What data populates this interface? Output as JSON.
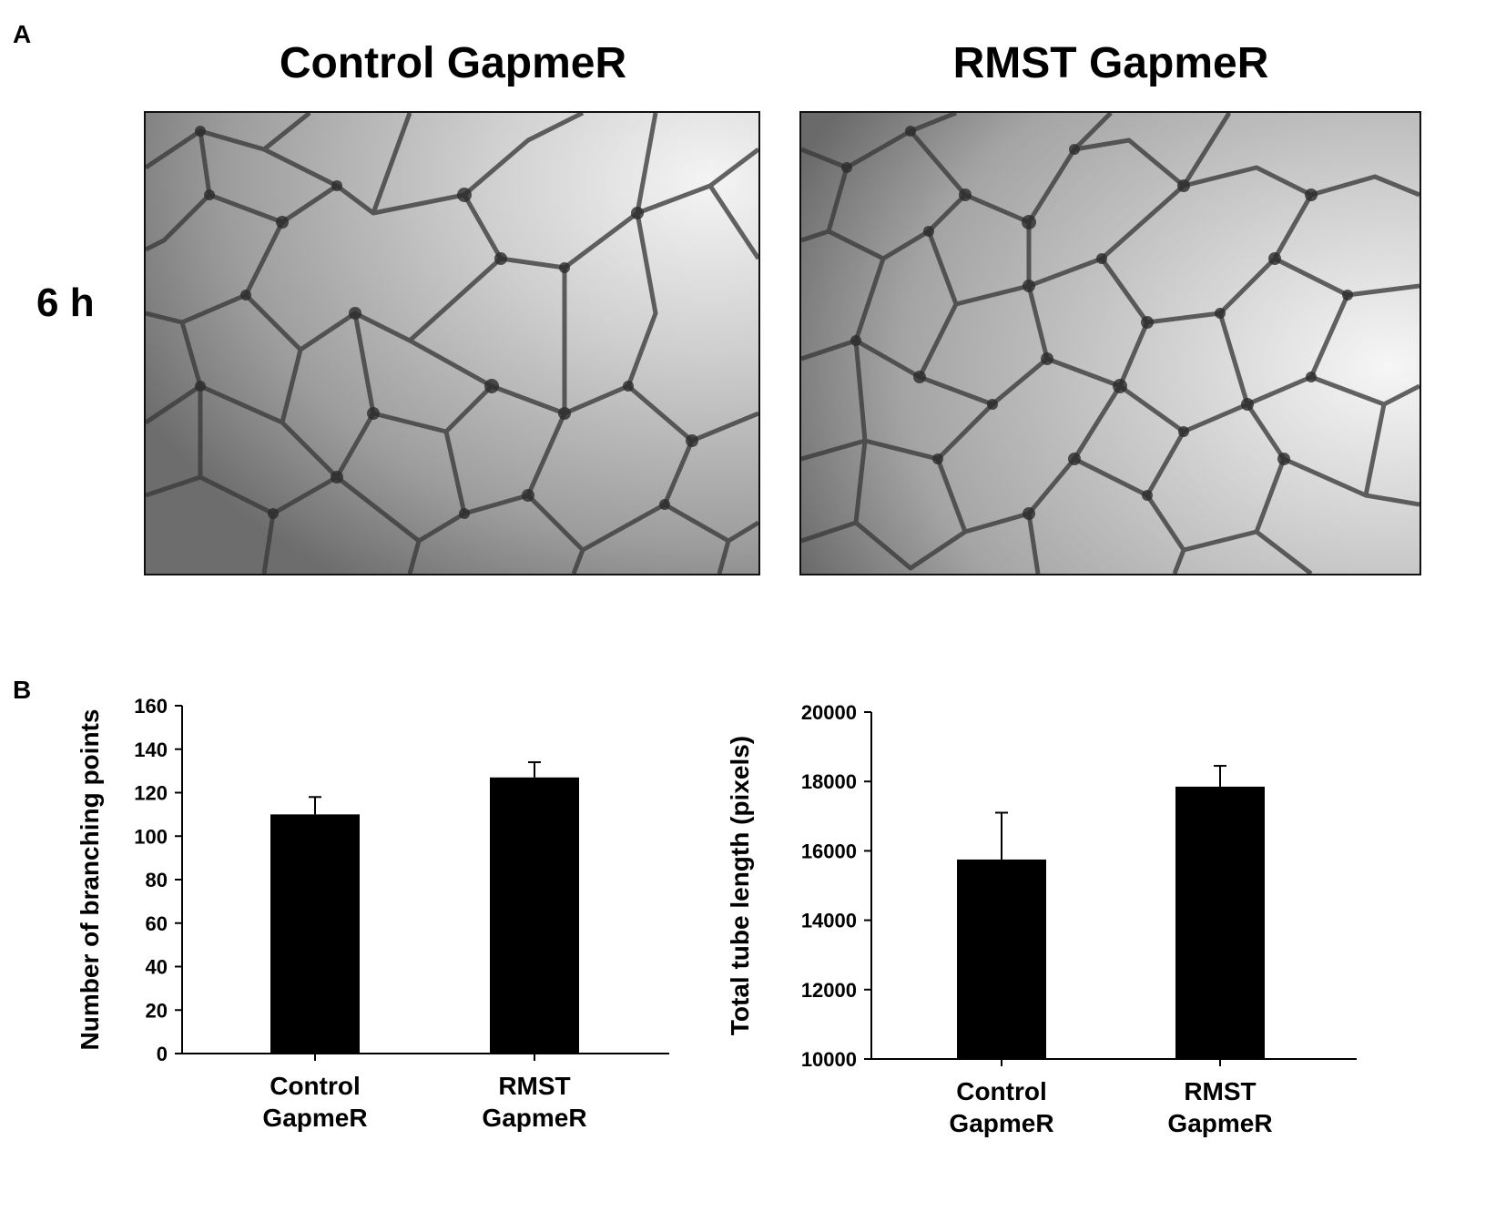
{
  "figure": {
    "panel_a_label": "A",
    "panel_b_label": "B",
    "time_label": "6 h",
    "conditions": [
      "Control GapmeR",
      "RMST GapmeR"
    ]
  },
  "chart_data": [
    {
      "type": "bar",
      "categories": [
        [
          "Control",
          "GapmeR"
        ],
        [
          "RMST",
          "GapmeR"
        ]
      ],
      "values": [
        110,
        127
      ],
      "errors": [
        8,
        7
      ],
      "ylabel": "Number of branching points",
      "xlabel": "",
      "ylim": [
        0,
        160
      ],
      "yticks": [
        0,
        20,
        40,
        60,
        80,
        100,
        120,
        140,
        160
      ],
      "bar_color": "#000000",
      "grid": false
    },
    {
      "type": "bar",
      "categories": [
        [
          "Control",
          "GapmeR"
        ],
        [
          "RMST",
          "GapmeR"
        ]
      ],
      "values": [
        15750,
        17850
      ],
      "errors": [
        1350,
        600
      ],
      "ylabel": "Total tube length (pixels)",
      "xlabel": "",
      "ylim": [
        10000,
        20000
      ],
      "yticks": [
        10000,
        12000,
        14000,
        16000,
        18000,
        20000
      ],
      "bar_color": "#000000",
      "grid": false
    }
  ]
}
